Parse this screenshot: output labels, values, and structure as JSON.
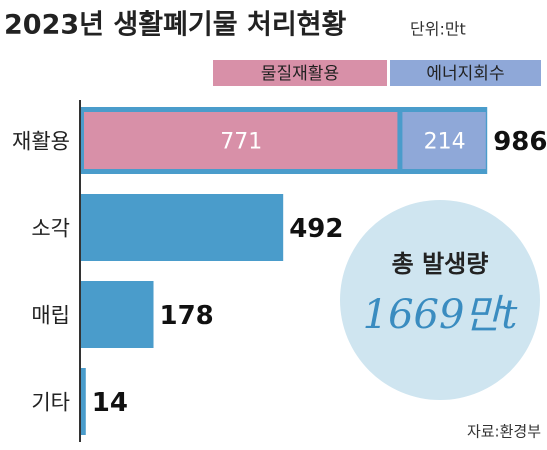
{
  "chart_data": {
    "type": "bar",
    "orientation": "horizontal",
    "title": "2023년 생활폐기물 처리현황",
    "unit": "단위:만t",
    "categories": [
      "재활용",
      "소각",
      "매립",
      "기타"
    ],
    "values": [
      986,
      492,
      178,
      14
    ],
    "color": "#4a9ccb",
    "breakdown": [
      {
        "name": "물질재활용",
        "color": "#d890a8",
        "values": [
          771
        ]
      },
      {
        "name": "에너지회수",
        "color": "#8fa8d8",
        "values": [
          214
        ]
      }
    ],
    "xlim": [
      0,
      1000
    ],
    "annotation": {
      "label": "총 발생량",
      "value": "1669만t"
    },
    "source": "자료:환경부"
  }
}
